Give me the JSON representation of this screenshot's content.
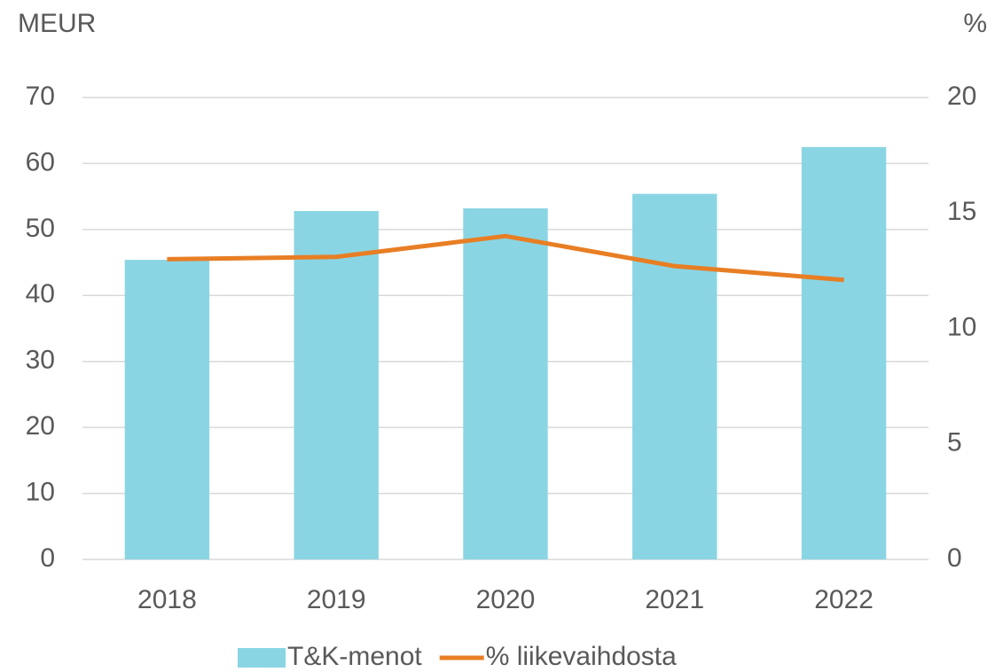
{
  "chart_data": {
    "type": "bar",
    "ylabel": "MEUR",
    "y2label": "%",
    "categories": [
      "2018",
      "2019",
      "2020",
      "2021",
      "2022"
    ],
    "series": [
      {
        "name": "T&K-menot",
        "type": "bar",
        "color": "#8ad5e3",
        "values": [
          45.4,
          52.8,
          53.2,
          55.4,
          62.5
        ]
      },
      {
        "name": "% liikevaihdosta",
        "type": "line",
        "axis": "y2",
        "color": "#e87e24",
        "values": [
          13.0,
          13.1,
          14.0,
          12.7,
          12.1
        ]
      }
    ],
    "ylim": [
      0,
      70
    ],
    "yticks": [
      0,
      10,
      20,
      30,
      40,
      50,
      60,
      70
    ],
    "y2lim": [
      0,
      20
    ],
    "y2ticks": [
      0,
      5,
      10,
      15,
      20
    ],
    "grid": true,
    "legend": "bottom"
  }
}
